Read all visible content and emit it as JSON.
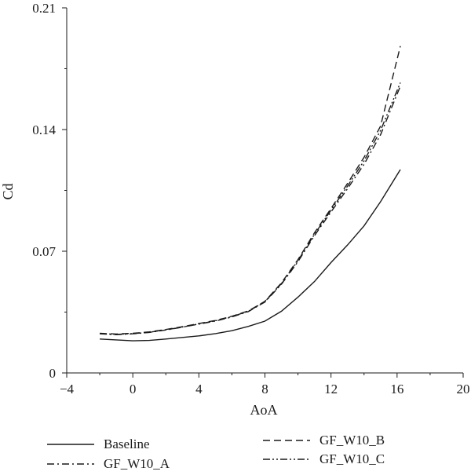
{
  "chart_data": {
    "type": "line",
    "xlabel": "AoA",
    "ylabel": "Cd",
    "xlim": [
      -4,
      20
    ],
    "ylim": [
      0,
      0.21
    ],
    "xticks": [
      -4,
      0,
      4,
      8,
      12,
      16,
      20
    ],
    "xtick_labels": [
      "−4",
      "0",
      "4",
      "8",
      "12",
      "16",
      "20"
    ],
    "yticks": [
      0,
      0.07,
      0.14,
      0.21
    ],
    "ytick_labels": [
      "0",
      "0.07",
      "0.14",
      "0.21"
    ],
    "grid": false,
    "legend_position": "bottom",
    "series": [
      {
        "name": "Baseline",
        "dash": "solid",
        "x": [
          -2,
          0,
          1,
          2,
          3,
          4,
          5,
          6,
          7,
          8,
          9,
          10,
          11,
          12,
          13,
          14,
          15,
          16.2
        ],
        "y": [
          0.0195,
          0.0185,
          0.0187,
          0.0195,
          0.0204,
          0.0213,
          0.0226,
          0.0243,
          0.0268,
          0.0298,
          0.0355,
          0.0436,
          0.0526,
          0.0635,
          0.0736,
          0.0846,
          0.0985,
          0.117
        ]
      },
      {
        "name": "GF_W10_A",
        "dash": "dashdot",
        "x": [
          -2,
          -1,
          0,
          1,
          2,
          3,
          4,
          5,
          6,
          7,
          8,
          9,
          10,
          11,
          12,
          13,
          14,
          15,
          16.2
        ],
        "y": [
          0.0225,
          0.022,
          0.0225,
          0.0233,
          0.0247,
          0.0263,
          0.0281,
          0.0298,
          0.0322,
          0.0353,
          0.0408,
          0.051,
          0.064,
          0.079,
          0.0926,
          0.106,
          0.12,
          0.137,
          0.165
        ]
      },
      {
        "name": "GF_W10_B",
        "dash": "dashed",
        "x": [
          -2,
          -1,
          0,
          1,
          2,
          3,
          4,
          5,
          6,
          7,
          8,
          9,
          10,
          11,
          12,
          13,
          14,
          15,
          16.2
        ],
        "y": [
          0.0228,
          0.0224,
          0.0228,
          0.0236,
          0.025,
          0.0266,
          0.0284,
          0.0302,
          0.0326,
          0.0357,
          0.0412,
          0.0518,
          0.0652,
          0.0806,
          0.0946,
          0.109,
          0.124,
          0.142,
          0.188
        ]
      },
      {
        "name": "GF_W10_C",
        "dash": "dashdotdot",
        "x": [
          -2,
          -1,
          0,
          1,
          2,
          3,
          4,
          5,
          6,
          7,
          8,
          9,
          10,
          11,
          12,
          13,
          14,
          15,
          16.2
        ],
        "y": [
          0.0226,
          0.0222,
          0.0226,
          0.0234,
          0.0248,
          0.0264,
          0.0282,
          0.03,
          0.0324,
          0.0355,
          0.041,
          0.0514,
          0.0646,
          0.0798,
          0.0936,
          0.1075,
          0.122,
          0.1395,
          0.167
        ]
      }
    ]
  }
}
